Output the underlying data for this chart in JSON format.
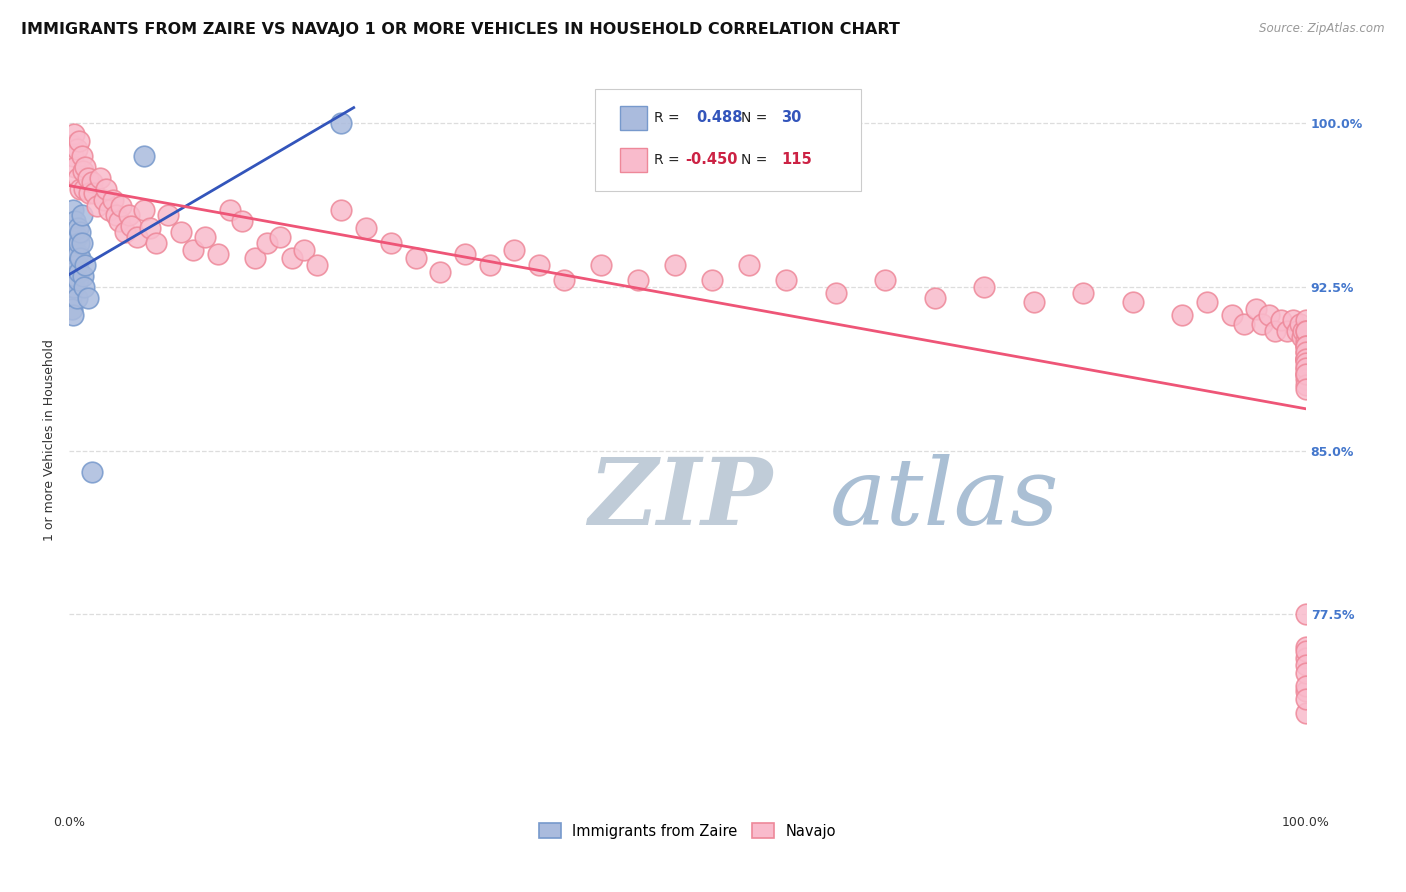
{
  "title": "IMMIGRANTS FROM ZAIRE VS NAVAJO 1 OR MORE VEHICLES IN HOUSEHOLD CORRELATION CHART",
  "source": "Source: ZipAtlas.com",
  "ylabel": "1 or more Vehicles in Household",
  "ytick_labels": [
    "100.0%",
    "92.5%",
    "85.0%",
    "77.5%"
  ],
  "ytick_values": [
    1.0,
    0.925,
    0.85,
    0.775
  ],
  "xlim": [
    0.0,
    1.0
  ],
  "ylim": [
    0.685,
    1.025
  ],
  "legend_label1": "Immigrants from Zaire",
  "legend_label2": "Navajo",
  "r1": 0.488,
  "n1": 30,
  "r2": -0.45,
  "n2": 115,
  "blue_color": "#7799cc",
  "blue_fill": "#aabbdd",
  "pink_color": "#ee8899",
  "pink_fill": "#f9bbcc",
  "trend_blue": "#3355bb",
  "trend_pink": "#ee5577",
  "watermark_zip_color": "#c5d5e5",
  "watermark_atlas_color": "#aabbd0",
  "title_fontsize": 11.5,
  "axis_label_fontsize": 9,
  "tick_fontsize": 9,
  "blue_scatter_x": [
    0.001,
    0.002,
    0.002,
    0.003,
    0.003,
    0.003,
    0.004,
    0.004,
    0.005,
    0.005,
    0.005,
    0.006,
    0.006,
    0.006,
    0.007,
    0.007,
    0.007,
    0.008,
    0.008,
    0.009,
    0.009,
    0.01,
    0.01,
    0.011,
    0.012,
    0.013,
    0.015,
    0.018,
    0.06,
    0.22
  ],
  "blue_scatter_y": [
    0.92,
    0.93,
    0.915,
    0.96,
    0.925,
    0.912,
    0.94,
    0.925,
    0.955,
    0.942,
    0.93,
    0.948,
    0.935,
    0.92,
    0.952,
    0.94,
    0.928,
    0.945,
    0.932,
    0.95,
    0.938,
    0.958,
    0.945,
    0.93,
    0.925,
    0.935,
    0.92,
    0.84,
    0.985,
    1.0
  ],
  "pink_scatter_x": [
    0.002,
    0.003,
    0.004,
    0.005,
    0.006,
    0.007,
    0.008,
    0.009,
    0.01,
    0.011,
    0.012,
    0.013,
    0.015,
    0.016,
    0.018,
    0.02,
    0.022,
    0.025,
    0.028,
    0.03,
    0.032,
    0.035,
    0.038,
    0.04,
    0.042,
    0.045,
    0.048,
    0.05,
    0.055,
    0.06,
    0.065,
    0.07,
    0.08,
    0.09,
    0.1,
    0.11,
    0.12,
    0.13,
    0.14,
    0.15,
    0.16,
    0.17,
    0.18,
    0.19,
    0.2,
    0.22,
    0.24,
    0.26,
    0.28,
    0.3,
    0.32,
    0.34,
    0.36,
    0.38,
    0.4,
    0.43,
    0.46,
    0.49,
    0.52,
    0.55,
    0.58,
    0.62,
    0.66,
    0.7,
    0.74,
    0.78,
    0.82,
    0.86,
    0.9,
    0.92,
    0.94,
    0.95,
    0.96,
    0.965,
    0.97,
    0.975,
    0.98,
    0.985,
    0.99,
    0.993,
    0.995,
    0.997,
    0.998,
    1.0,
    1.0,
    1.0,
    1.0,
    1.0,
    1.0,
    1.0,
    1.0,
    1.0,
    1.0,
    1.0,
    1.0,
    1.0,
    1.0,
    1.0,
    1.0,
    1.0,
    1.0,
    1.0,
    1.0,
    1.0,
    1.0,
    1.0,
    1.0,
    1.0,
    1.0,
    1.0,
    1.0,
    1.0,
    1.0,
    1.0,
    1.0
  ],
  "pink_scatter_y": [
    0.99,
    0.985,
    0.995,
    0.98,
    0.988,
    0.975,
    0.992,
    0.97,
    0.985,
    0.978,
    0.97,
    0.98,
    0.975,
    0.968,
    0.973,
    0.968,
    0.962,
    0.975,
    0.965,
    0.97,
    0.96,
    0.965,
    0.958,
    0.955,
    0.962,
    0.95,
    0.958,
    0.953,
    0.948,
    0.96,
    0.952,
    0.945,
    0.958,
    0.95,
    0.942,
    0.948,
    0.94,
    0.96,
    0.955,
    0.938,
    0.945,
    0.948,
    0.938,
    0.942,
    0.935,
    0.96,
    0.952,
    0.945,
    0.938,
    0.932,
    0.94,
    0.935,
    0.942,
    0.935,
    0.928,
    0.935,
    0.928,
    0.935,
    0.928,
    0.935,
    0.928,
    0.922,
    0.928,
    0.92,
    0.925,
    0.918,
    0.922,
    0.918,
    0.912,
    0.918,
    0.912,
    0.908,
    0.915,
    0.908,
    0.912,
    0.905,
    0.91,
    0.905,
    0.91,
    0.905,
    0.908,
    0.902,
    0.905,
    0.9,
    0.895,
    0.91,
    0.905,
    0.898,
    0.892,
    0.905,
    0.898,
    0.892,
    0.898,
    0.892,
    0.885,
    0.895,
    0.888,
    0.892,
    0.885,
    0.89,
    0.883,
    0.888,
    0.88,
    0.885,
    0.878,
    0.775,
    0.76,
    0.755,
    0.74,
    0.73,
    0.758,
    0.752,
    0.748,
    0.742,
    0.736
  ]
}
